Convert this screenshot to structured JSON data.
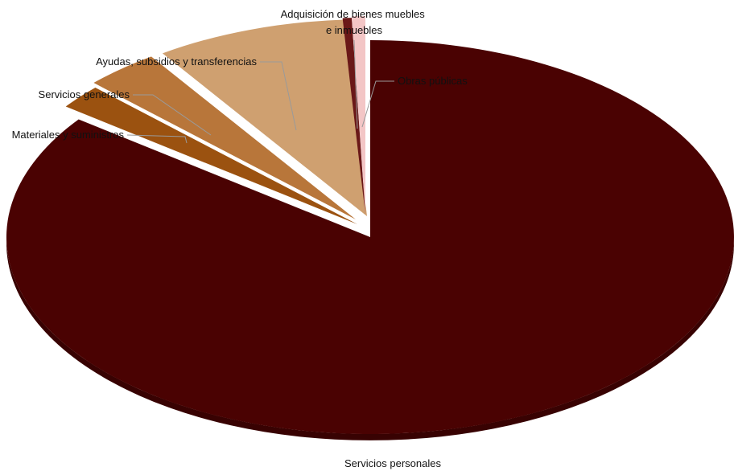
{
  "chart_data": {
    "type": "pie",
    "title": "",
    "legend": "none",
    "labels": [
      "Servicios personales",
      "Materiales y suministros",
      "Servicios generales",
      "Ayudas, subsidios y transferencias",
      "Adquisición de bienes muebles e inmuebles",
      "Obras públicas"
    ],
    "values": [
      85.2,
      2.0,
      3.3,
      8.5,
      0.4,
      0.6
    ],
    "colors": [
      "#4a0202",
      "#9b5210",
      "#b8763a",
      "#cfa070",
      "#6a1818",
      "#f3c6c6"
    ]
  }
}
